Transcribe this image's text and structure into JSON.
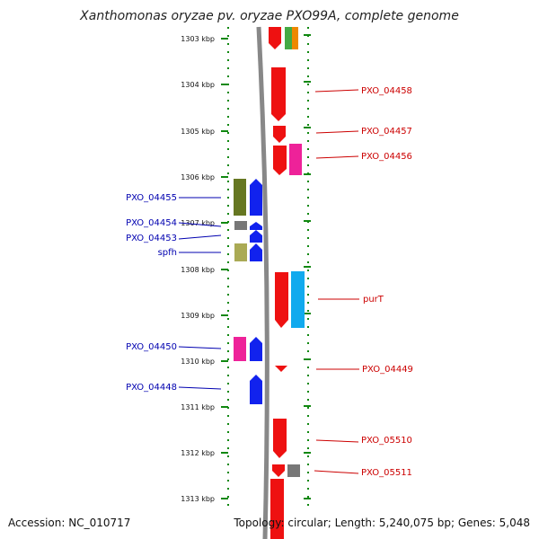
{
  "title": "Xanthomonas oryzae pv. oryzae PXO99A, complete genome",
  "accession": "Accession: NC_010717",
  "topology": "Topology: circular; Length: 5,240,075 bp; Genes: 5,048",
  "scale_ticks": [
    "1303 kbp",
    "1304 kbp",
    "1305 kbp",
    "1306 kbp",
    "1307 kbp",
    "1308 kbp",
    "1309 kbp",
    "1310 kbp",
    "1311 kbp",
    "1312 kbp",
    "1313 kbp"
  ],
  "labels_right": [
    "PXO_04458",
    "PXO_04457",
    "PXO_04456",
    "purT",
    "PXO_04449",
    "PXO_05510",
    "PXO_05511"
  ],
  "labels_left": [
    "PXO_04455",
    "PXO_04454",
    "PXO_04453",
    "spfh",
    "PXO_04450",
    "PXO_04448"
  ],
  "colors": {
    "red": "#ee1111",
    "magenta": "#ee2299",
    "cyan": "#11aaee",
    "blue": "#1122ee",
    "olive": "#667722",
    "khaki": "#aaaa55",
    "gray": "#777777",
    "green": "#44aa44",
    "orange": "#ee8800",
    "right_label": "#cc0000",
    "left_label": "#0000b0",
    "dots": "#118811"
  }
}
